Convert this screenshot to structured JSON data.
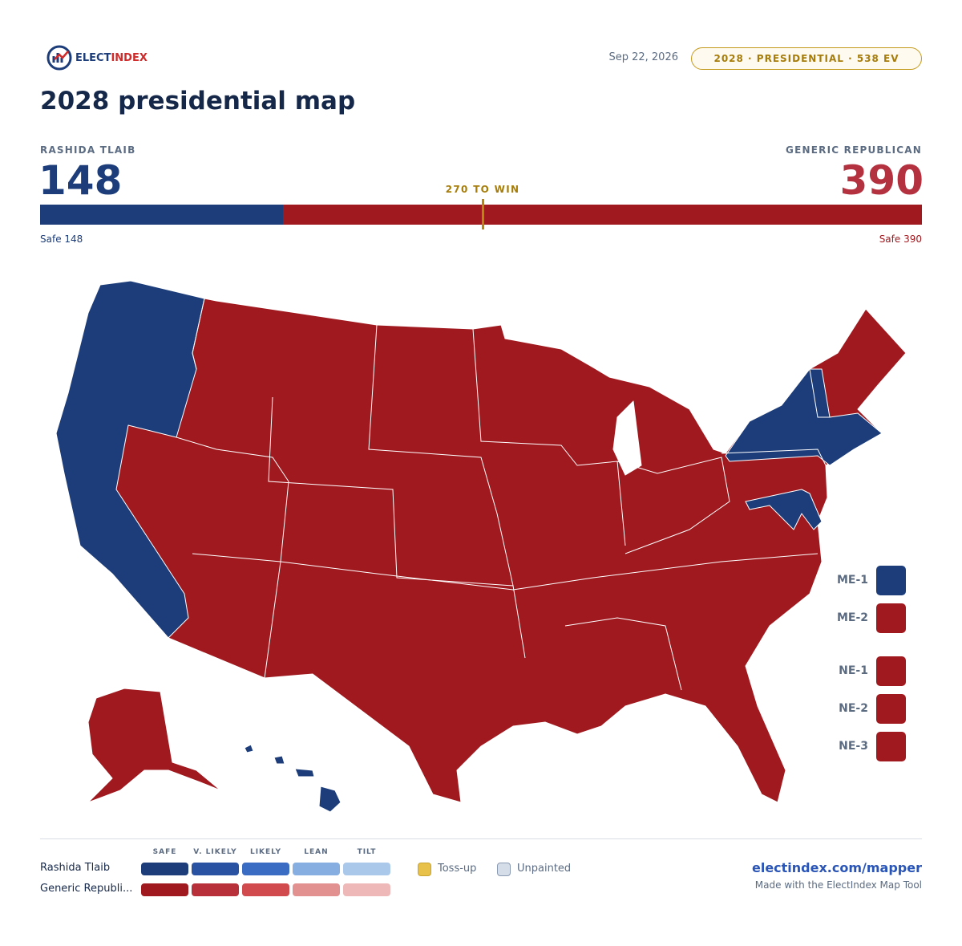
{
  "header": {
    "logo_a": "ELECT",
    "logo_b": "INDEX",
    "date": "Sep 22, 2026",
    "badge": "2028 · PRESIDENTIAL · 538 EV",
    "title": "2028 presidential map"
  },
  "summary": {
    "left": {
      "name": "RASHIDA TLAIB",
      "ev": 148,
      "safe_label": "Safe",
      "color": "#1c3d7a"
    },
    "right": {
      "name": "GENERIC REPUBLICAN",
      "ev": 390,
      "safe_label": "Safe",
      "color": "#a0191f"
    },
    "to_win": {
      "value": 270,
      "label": "TO WIN"
    }
  },
  "districts": [
    {
      "label": "ME-1",
      "party": "left"
    },
    {
      "label": "ME-2",
      "party": "right"
    },
    {
      "label": "NE-1",
      "party": "right"
    },
    {
      "label": "NE-2",
      "party": "right"
    },
    {
      "label": "NE-3",
      "party": "right"
    }
  ],
  "legend": {
    "columns": [
      "SAFE",
      "V. LIKELY",
      "LIKELY",
      "LEAN",
      "TILT"
    ],
    "rows": [
      {
        "name": "Rashida Tlaib",
        "colors": [
          "#1c3d7a",
          "#2952a3",
          "#3b6cc4",
          "#86aee0",
          "#aac8ea"
        ]
      },
      {
        "name": "Generic Republi...",
        "colors": [
          "#a0191f",
          "#b8303a",
          "#d04a4e",
          "#e39090",
          "#efb8b8"
        ]
      }
    ],
    "tossup": {
      "label": "Toss-up",
      "color": "#e8c14a"
    },
    "unpainted": {
      "label": "Unpainted",
      "color": "#d5dde8"
    }
  },
  "footer": {
    "url": "electindex.com/mapper",
    "credit": "Made with the ElectIndex Map Tool"
  }
}
